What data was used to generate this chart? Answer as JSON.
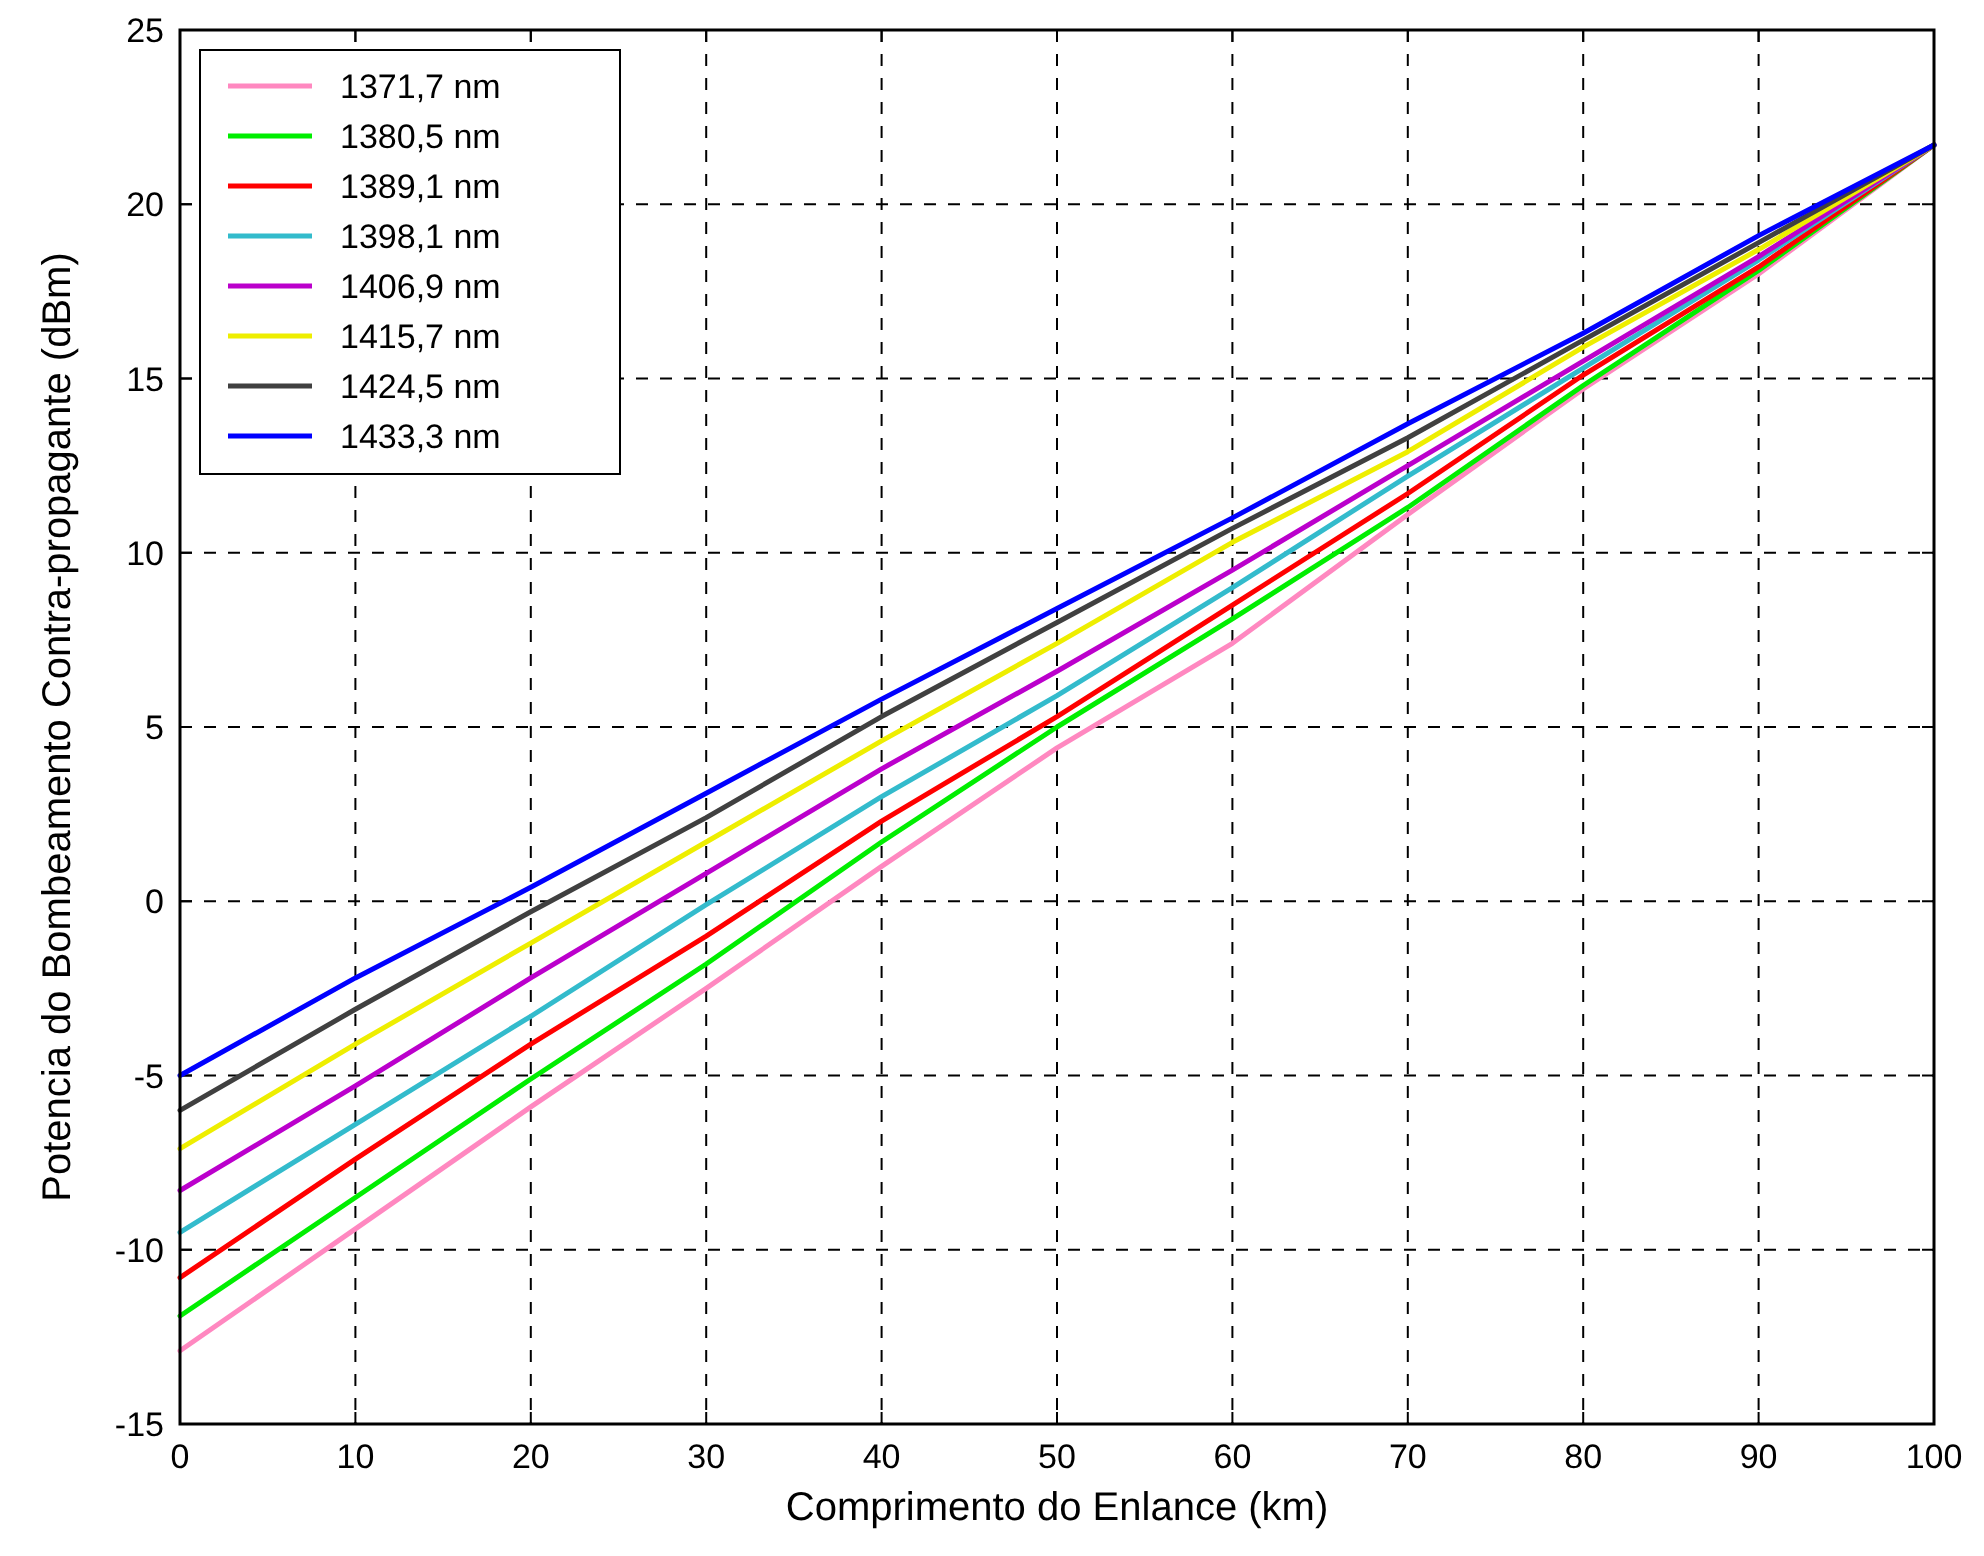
{
  "chart_data": {
    "type": "line",
    "xlabel": "Comprimento do Enlance (km)",
    "ylabel": "Potencia do Bombeamento Contra-propagante (dBm)",
    "x": [
      0,
      10,
      20,
      30,
      40,
      50,
      60,
      70,
      80,
      90,
      100
    ],
    "xlim": [
      0,
      100
    ],
    "xticks": [
      0,
      10,
      20,
      30,
      40,
      50,
      60,
      70,
      80,
      90,
      100
    ],
    "ylim": [
      -15,
      25
    ],
    "yticks": [
      -15,
      -10,
      -5,
      0,
      5,
      10,
      15,
      20,
      25
    ],
    "grid": true,
    "legend": "top left",
    "line_style": "solid",
    "marker": "none",
    "series": [
      {
        "name": "1371,7 nm",
        "color": "#ff88c0",
        "values": [
          -12.9,
          -9.4,
          -5.9,
          -2.5,
          1.0,
          4.4,
          7.4,
          11.1,
          14.7,
          18.0,
          21.7
        ]
      },
      {
        "name": "1380,5 nm",
        "color": "#00ee00",
        "values": [
          -11.9,
          -8.5,
          -5.1,
          -1.8,
          1.7,
          5.0,
          8.1,
          11.3,
          14.8,
          18.1,
          21.7
        ]
      },
      {
        "name": "1389,1 nm",
        "color": "#ff0000",
        "values": [
          -10.8,
          -7.4,
          -4.1,
          -1.0,
          2.3,
          5.3,
          8.5,
          11.7,
          15.1,
          18.2,
          21.7
        ]
      },
      {
        "name": "1398,1 nm",
        "color": "#33bbcc",
        "values": [
          -9.5,
          -6.4,
          -3.3,
          -0.1,
          3.0,
          5.9,
          9.0,
          12.2,
          15.3,
          18.4,
          21.7
        ]
      },
      {
        "name": "1406,9 nm",
        "color": "#bb00cc",
        "values": [
          -8.3,
          -5.3,
          -2.2,
          0.8,
          3.8,
          6.6,
          9.5,
          12.5,
          15.5,
          18.5,
          21.7
        ]
      },
      {
        "name": "1415,7 nm",
        "color": "#eeee00",
        "values": [
          -7.1,
          -4.1,
          -1.2,
          1.7,
          4.6,
          7.4,
          10.3,
          12.9,
          15.9,
          18.7,
          21.7
        ]
      },
      {
        "name": "1424,5 nm",
        "color": "#404040",
        "values": [
          -6.0,
          -3.1,
          -0.3,
          2.4,
          5.3,
          8.0,
          10.7,
          13.3,
          16.1,
          18.9,
          21.7
        ]
      },
      {
        "name": "1433,3 nm",
        "color": "#0000ff",
        "values": [
          -5.0,
          -2.2,
          0.4,
          3.1,
          5.8,
          8.4,
          11.0,
          13.7,
          16.3,
          19.1,
          21.7
        ]
      }
    ]
  }
}
